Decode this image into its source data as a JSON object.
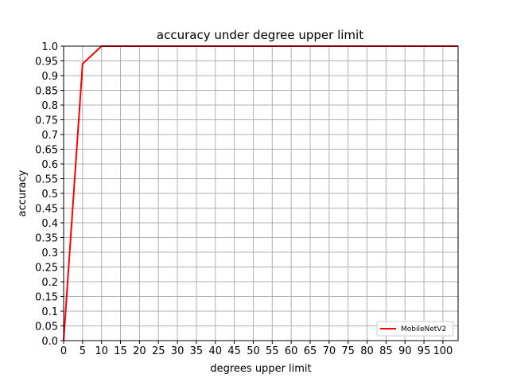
{
  "chart_data": {
    "type": "line",
    "title": "accuracy under degree upper limit",
    "xlabel": "degrees upper limit",
    "ylabel": "accuracy",
    "xlim": [
      0,
      104
    ],
    "ylim": [
      0,
      1.0
    ],
    "x_ticks": [
      0,
      5,
      10,
      15,
      20,
      25,
      30,
      35,
      40,
      45,
      50,
      55,
      60,
      65,
      70,
      75,
      80,
      85,
      90,
      95,
      100
    ],
    "x_tick_labels": [
      "0",
      "5",
      "10",
      "15",
      "20",
      "25",
      "30",
      "35",
      "40",
      "45",
      "50",
      "55",
      "60",
      "65",
      "70",
      "75",
      "80",
      "85",
      "90",
      "95",
      "100"
    ],
    "y_ticks": [
      0,
      0.05,
      0.1,
      0.15,
      0.2,
      0.25,
      0.3,
      0.35,
      0.4,
      0.45,
      0.5,
      0.55,
      0.6,
      0.65,
      0.7,
      0.75,
      0.8,
      0.85,
      0.9,
      0.95,
      1.0
    ],
    "y_tick_labels": [
      "0.0",
      "0.05",
      "0.1",
      "0.15",
      "0.2",
      "0.25",
      "0.3",
      "0.35",
      "0.4",
      "0.45",
      "0.5",
      "0.55",
      "0.6",
      "0.65",
      "0.7",
      "0.75",
      "0.8",
      "0.85",
      "0.9",
      "0.95",
      "1.0"
    ],
    "grid": true,
    "legend_position": "bottom-right",
    "series": [
      {
        "name": "MobileNetV2",
        "color": "#ff0000",
        "x": [
          0,
          5,
          10,
          15,
          20,
          25,
          30,
          35,
          40,
          45,
          50,
          55,
          60,
          65,
          70,
          75,
          80,
          85,
          90,
          95,
          100,
          104
        ],
        "y": [
          0.0,
          0.94,
          1.0,
          1.0,
          1.0,
          1.0,
          1.0,
          1.0,
          1.0,
          1.0,
          1.0,
          1.0,
          1.0,
          1.0,
          1.0,
          1.0,
          1.0,
          1.0,
          1.0,
          1.0,
          1.0,
          1.0
        ]
      }
    ]
  }
}
